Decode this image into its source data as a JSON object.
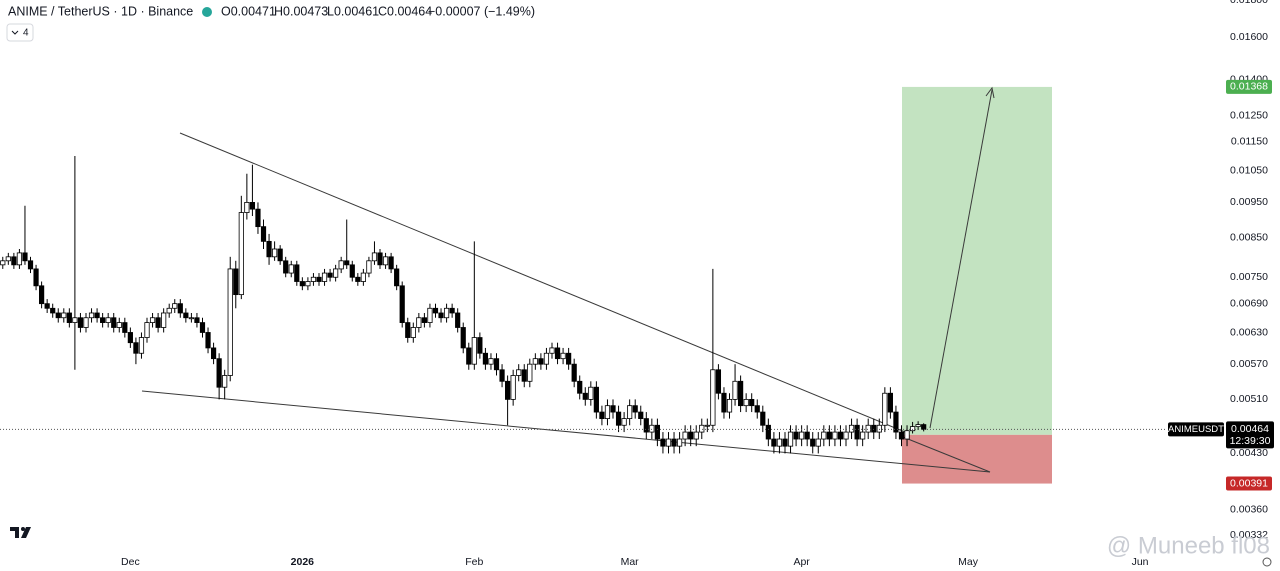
{
  "header": {
    "symbol": "ANIME / TetherUS · 1D · Binance",
    "ohlc": [
      "O0.00471",
      "H0.00473",
      "L0.00461",
      "C0.00464",
      "−0.00007 (−1.49%)"
    ],
    "indicators": "4"
  },
  "chart_data": {
    "type": "candlestick",
    "categories": [
      null,
      null,
      null,
      null,
      null,
      null,
      null,
      null,
      null,
      null,
      null,
      null,
      null,
      null,
      null,
      null,
      null,
      null,
      null,
      null,
      null,
      null,
      null,
      "Dec",
      null,
      null,
      null,
      null,
      null,
      null,
      null,
      null,
      null,
      null,
      null,
      null,
      null,
      null,
      null,
      null,
      null,
      null,
      null,
      null,
      null,
      null,
      null,
      null,
      null,
      null,
      null,
      null,
      null,
      null,
      "2026",
      null,
      null,
      null,
      null,
      null,
      null,
      null,
      null,
      null,
      null,
      null,
      null,
      null,
      null,
      null,
      null,
      null,
      null,
      null,
      null,
      null,
      null,
      null,
      null,
      null,
      null,
      null,
      null,
      null,
      null,
      "Feb",
      null,
      null,
      null,
      null,
      null,
      null,
      null,
      null,
      null,
      null,
      null,
      null,
      null,
      null,
      null,
      null,
      null,
      null,
      null,
      null,
      null,
      null,
      null,
      null,
      null,
      null,
      null,
      "Mar",
      null,
      null,
      null,
      null,
      null,
      null,
      null,
      null,
      null,
      null,
      null,
      null,
      null,
      null,
      null,
      null,
      null,
      null,
      null,
      null,
      null,
      null,
      null,
      null,
      null,
      null,
      null,
      null,
      null,
      null,
      "Apr",
      null,
      null,
      null,
      null,
      null,
      null,
      null,
      null,
      null,
      null,
      null,
      null,
      null,
      null,
      null,
      null,
      null,
      null,
      null,
      null,
      null,
      null,
      null,
      null,
      null,
      null,
      null,
      null,
      null,
      "May",
      null,
      null,
      null,
      null,
      null,
      null,
      null,
      null,
      null,
      null,
      null,
      null,
      null,
      null,
      null,
      null,
      null,
      null,
      null,
      null,
      null,
      null,
      null,
      null,
      null,
      null,
      null,
      null,
      null,
      null,
      "Jun",
      null,
      null,
      null,
      null
    ],
    "open": [
      0.0078,
      0.0079,
      0.008,
      0.0078,
      0.0081,
      0.0079,
      0.0077,
      0.0073,
      0.0069,
      0.0068,
      0.0067,
      0.0066,
      0.0067,
      0.0065,
      0.0066,
      0.0064,
      0.0066,
      0.0067,
      0.0066,
      0.0065,
      0.0066,
      0.0064,
      0.0065,
      0.0063,
      0.0061,
      0.0059,
      0.0062,
      0.0065,
      0.0066,
      0.0064,
      0.0067,
      0.0068,
      0.0069,
      0.0067,
      0.0066,
      0.0066,
      0.0065,
      0.0063,
      0.006,
      0.0058,
      0.0053,
      0.0055,
      0.0077,
      0.0071,
      0.0092,
      0.0095,
      0.0093,
      0.0088,
      0.0084,
      0.008,
      0.0082,
      0.0079,
      0.0076,
      0.0078,
      0.0074,
      0.0073,
      0.0074,
      0.0075,
      0.0074,
      0.0076,
      0.0075,
      0.0077,
      0.0079,
      0.0078,
      0.0075,
      0.0074,
      0.0076,
      0.0079,
      0.0081,
      0.0078,
      0.008,
      0.0077,
      0.0073,
      0.0065,
      0.0062,
      0.0064,
      0.0066,
      0.0065,
      0.0068,
      0.0067,
      0.0066,
      0.0068,
      0.0067,
      0.0064,
      0.006,
      0.0057,
      0.0062,
      0.0059,
      0.0057,
      0.0058,
      0.0056,
      0.0054,
      0.0051,
      0.0055,
      0.0056,
      0.0054,
      0.0057,
      0.0058,
      0.0057,
      0.0059,
      0.006,
      0.0058,
      0.0059,
      0.0057,
      0.0054,
      0.0052,
      0.0051,
      0.0053,
      0.0049,
      0.0048,
      0.005,
      0.0049,
      0.0047,
      0.0048,
      0.005,
      0.0049,
      0.0048,
      0.0046,
      0.0047,
      0.0045,
      0.0044,
      0.0045,
      0.0044,
      0.0045,
      0.0046,
      0.0045,
      0.0046,
      0.0047,
      0.0047,
      0.0056,
      0.0052,
      0.0049,
      0.0051,
      0.0054,
      0.005,
      0.0051,
      0.005,
      0.0049,
      0.0047,
      0.0045,
      0.0044,
      0.0045,
      0.0044,
      0.0046,
      0.0045,
      0.0046,
      0.0045,
      0.0044,
      0.0045,
      0.0046,
      0.0045,
      0.0046,
      0.0045,
      0.0046,
      0.0047,
      0.0045,
      0.0046,
      0.0047,
      0.0046,
      0.0047,
      0.0052,
      0.0049,
      0.0046,
      0.0045,
      0.00462,
      0.00468,
      0.00471,
      null,
      null,
      null,
      null,
      null,
      null,
      null,
      null,
      null,
      null,
      null,
      null,
      null,
      null,
      null,
      null,
      null,
      null,
      null,
      null,
      null,
      null,
      null,
      null,
      null,
      null,
      null,
      null,
      null,
      null,
      null,
      null,
      null,
      null,
      null,
      null,
      null,
      null,
      null,
      null,
      null,
      null,
      null
    ],
    "high": [
      0.008,
      0.0081,
      0.0081,
      0.0082,
      0.0094,
      0.008,
      0.0078,
      0.0074,
      0.007,
      0.0069,
      0.0068,
      0.0068,
      0.0068,
      0.011,
      0.0067,
      0.0067,
      0.0068,
      0.0068,
      0.0067,
      0.0067,
      0.0067,
      0.0066,
      0.0066,
      0.0064,
      0.0062,
      0.0063,
      0.0066,
      0.0067,
      0.0067,
      0.0068,
      0.0069,
      0.007,
      0.007,
      0.0068,
      0.0067,
      0.0067,
      0.0066,
      0.0064,
      0.0061,
      0.0059,
      0.0056,
      0.008,
      0.0079,
      0.0097,
      0.0104,
      0.0107,
      0.0095,
      0.009,
      0.0086,
      0.0084,
      0.0083,
      0.008,
      0.0079,
      0.0079,
      0.0075,
      0.0075,
      0.0076,
      0.0076,
      0.0077,
      0.0077,
      0.0078,
      0.008,
      0.009,
      0.0079,
      0.0076,
      0.0077,
      0.008,
      0.0084,
      0.0082,
      0.0081,
      0.0081,
      0.0078,
      0.0074,
      0.0066,
      0.0065,
      0.0067,
      0.0067,
      0.0069,
      0.0069,
      0.0068,
      0.0069,
      0.0069,
      0.0068,
      0.0065,
      0.0061,
      0.0084,
      0.0063,
      0.006,
      0.0059,
      0.0059,
      0.0057,
      0.0055,
      0.0056,
      0.0057,
      0.0057,
      0.0058,
      0.0059,
      0.0059,
      0.006,
      0.0061,
      0.0061,
      0.006,
      0.006,
      0.0058,
      0.0055,
      0.0053,
      0.0054,
      0.0054,
      0.005,
      0.0051,
      0.0051,
      0.005,
      0.0049,
      0.0051,
      0.0051,
      0.005,
      0.0049,
      0.0048,
      0.0048,
      0.0046,
      0.0046,
      0.0046,
      0.0046,
      0.0047,
      0.0047,
      0.0047,
      0.0048,
      0.0048,
      0.0077,
      0.0057,
      0.0053,
      0.0052,
      0.0057,
      0.0055,
      0.0052,
      0.0052,
      0.0051,
      0.005,
      0.0048,
      0.0046,
      0.0046,
      0.0046,
      0.0047,
      0.0047,
      0.0047,
      0.0047,
      0.0046,
      0.0046,
      0.0047,
      0.0047,
      0.0047,
      0.0047,
      0.0047,
      0.0048,
      0.0048,
      0.0047,
      0.0048,
      0.0048,
      0.0048,
      0.0053,
      0.0053,
      0.005,
      0.0047,
      0.0047,
      0.00475,
      0.00476,
      0.00473,
      null,
      null,
      null,
      null,
      null,
      null,
      null,
      null,
      null,
      null,
      null,
      null,
      null,
      null,
      null,
      null,
      null,
      null,
      null,
      null,
      null,
      null,
      null,
      null,
      null,
      null,
      null,
      null,
      null,
      null,
      null,
      null,
      null,
      null,
      null,
      null,
      null,
      null,
      null,
      null,
      null,
      null,
      null
    ],
    "low": [
      0.0077,
      0.0078,
      0.0077,
      0.0077,
      0.0078,
      0.0076,
      0.0072,
      0.0068,
      0.0067,
      0.0066,
      0.0065,
      0.0065,
      0.0064,
      0.0056,
      0.0063,
      0.0063,
      0.0065,
      0.0065,
      0.0064,
      0.0064,
      0.0063,
      0.0063,
      0.0062,
      0.006,
      0.0057,
      0.0058,
      0.0061,
      0.0064,
      0.0063,
      0.0063,
      0.0066,
      0.0067,
      0.0066,
      0.0065,
      0.0065,
      0.0064,
      0.0062,
      0.0059,
      0.0057,
      0.0051,
      0.0051,
      0.0054,
      0.0068,
      0.007,
      0.009,
      0.0091,
      0.0086,
      0.0082,
      0.0078,
      0.0079,
      0.0078,
      0.0075,
      0.0075,
      0.0073,
      0.0072,
      0.0072,
      0.0073,
      0.0073,
      0.0073,
      0.0074,
      0.0074,
      0.0076,
      0.0077,
      0.0074,
      0.0073,
      0.0073,
      0.0075,
      0.0078,
      0.0077,
      0.0077,
      0.0076,
      0.0072,
      0.0064,
      0.0061,
      0.0061,
      0.0063,
      0.0064,
      0.0064,
      0.0066,
      0.0065,
      0.0065,
      0.0066,
      0.0063,
      0.0059,
      0.0056,
      0.0056,
      0.0058,
      0.0056,
      0.0056,
      0.0055,
      0.0053,
      0.0047,
      0.005,
      0.0054,
      0.0053,
      0.0053,
      0.0056,
      0.0056,
      0.0056,
      0.0058,
      0.0057,
      0.0057,
      0.0056,
      0.0053,
      0.0051,
      0.005,
      0.005,
      0.0048,
      0.0047,
      0.0047,
      0.0048,
      0.0046,
      0.0046,
      0.0047,
      0.0048,
      0.0047,
      0.0045,
      0.0045,
      0.0044,
      0.0043,
      0.0043,
      0.0043,
      0.0043,
      0.0044,
      0.0044,
      0.0044,
      0.0045,
      0.0046,
      0.0046,
      0.0051,
      0.0048,
      0.0048,
      0.005,
      0.0049,
      0.0049,
      0.0049,
      0.0048,
      0.0046,
      0.0044,
      0.0043,
      0.0043,
      0.0043,
      0.0043,
      0.0044,
      0.0044,
      0.0044,
      0.0043,
      0.0043,
      0.0044,
      0.0044,
      0.0044,
      0.0044,
      0.0044,
      0.0045,
      0.0044,
      0.0044,
      0.0045,
      0.0045,
      0.0045,
      0.0046,
      0.0048,
      0.0045,
      0.0044,
      0.0044,
      0.00458,
      0.00463,
      0.00461,
      null,
      null,
      null,
      null,
      null,
      null,
      null,
      null,
      null,
      null,
      null,
      null,
      null,
      null,
      null,
      null,
      null,
      null,
      null,
      null,
      null,
      null,
      null,
      null,
      null,
      null,
      null,
      null,
      null,
      null,
      null,
      null,
      null,
      null,
      null,
      null,
      null,
      null,
      null,
      null,
      null,
      null,
      null
    ],
    "close": [
      0.0079,
      0.008,
      0.0078,
      0.0081,
      0.0079,
      0.0077,
      0.0073,
      0.0069,
      0.0068,
      0.0067,
      0.0066,
      0.0067,
      0.0065,
      0.0066,
      0.0064,
      0.0066,
      0.0067,
      0.0066,
      0.0065,
      0.0066,
      0.0064,
      0.0065,
      0.0063,
      0.0061,
      0.0059,
      0.0062,
      0.0065,
      0.0066,
      0.0064,
      0.0067,
      0.0068,
      0.0069,
      0.0067,
      0.0066,
      0.0066,
      0.0065,
      0.0063,
      0.006,
      0.0058,
      0.0053,
      0.0055,
      0.0077,
      0.0071,
      0.0092,
      0.0095,
      0.0093,
      0.0088,
      0.0084,
      0.008,
      0.0082,
      0.0079,
      0.0076,
      0.0078,
      0.0074,
      0.0073,
      0.0074,
      0.0075,
      0.0074,
      0.0076,
      0.0075,
      0.0077,
      0.0079,
      0.0078,
      0.0075,
      0.0074,
      0.0076,
      0.0079,
      0.0081,
      0.0078,
      0.008,
      0.0077,
      0.0073,
      0.0065,
      0.0062,
      0.0064,
      0.0066,
      0.0065,
      0.0068,
      0.0067,
      0.0066,
      0.0068,
      0.0067,
      0.0064,
      0.006,
      0.0057,
      0.0062,
      0.0059,
      0.0057,
      0.0058,
      0.0056,
      0.0054,
      0.0051,
      0.0055,
      0.0056,
      0.0054,
      0.0057,
      0.0058,
      0.0057,
      0.0059,
      0.006,
      0.0058,
      0.0059,
      0.0057,
      0.0054,
      0.0052,
      0.0051,
      0.0053,
      0.0049,
      0.0048,
      0.005,
      0.0049,
      0.0047,
      0.0048,
      0.005,
      0.0049,
      0.0048,
      0.0046,
      0.0047,
      0.0045,
      0.0044,
      0.0045,
      0.0044,
      0.0045,
      0.0046,
      0.0045,
      0.0046,
      0.0047,
      0.0047,
      0.0056,
      0.0052,
      0.0049,
      0.0051,
      0.0054,
      0.005,
      0.0051,
      0.005,
      0.0049,
      0.0047,
      0.0045,
      0.0044,
      0.0045,
      0.0044,
      0.0046,
      0.0045,
      0.0046,
      0.0045,
      0.0044,
      0.0045,
      0.0046,
      0.0045,
      0.0046,
      0.0045,
      0.0046,
      0.0047,
      0.0045,
      0.0046,
      0.0047,
      0.0046,
      0.0047,
      0.0052,
      0.0049,
      0.0046,
      0.0045,
      0.00462,
      0.00468,
      0.00471,
      0.00464,
      null,
      null,
      null,
      null,
      null,
      null,
      null,
      null,
      null,
      null,
      null,
      null,
      null,
      null,
      null,
      null,
      null,
      null,
      null,
      null,
      null,
      null,
      null,
      null,
      null,
      null,
      null,
      null,
      null,
      null,
      null,
      null,
      null,
      null,
      null,
      null,
      null,
      null,
      null,
      null,
      null,
      null,
      null
    ],
    "up_color": "#ffffff",
    "down_color": "#000000",
    "log_scale": true,
    "ylim": [
      0.00319,
      0.018
    ],
    "yticks": [
      {
        "value": 0.018,
        "label": "0.01800"
      },
      {
        "value": 0.016,
        "label": "0.01600"
      },
      {
        "value": 0.014,
        "label": "0.01400"
      },
      {
        "value": 0.0125,
        "label": "0.01250"
      },
      {
        "value": 0.0115,
        "label": "0.01150"
      },
      {
        "value": 0.0105,
        "label": "0.01050"
      },
      {
        "value": 0.0095,
        "label": "0.00950"
      },
      {
        "value": 0.0085,
        "label": "0.00850"
      },
      {
        "value": 0.0075,
        "label": "0.00750"
      },
      {
        "value": 0.0069,
        "label": "0.00690"
      },
      {
        "value": 0.0063,
        "label": "0.00630"
      },
      {
        "value": 0.0057,
        "label": "0.00570"
      },
      {
        "value": 0.0051,
        "label": "0.00510"
      },
      {
        "value": 0.0043,
        "label": "0.00430"
      },
      {
        "value": 0.0036,
        "label": "0.00360"
      },
      0.00332
    ],
    "ticker": "ANIMEUSDT",
    "countdown": "12:39:30",
    "position": {
      "target": 0.01368,
      "entry": 0.00456,
      "stop": 0.00391,
      "profit_color": "#c3e3c1",
      "loss_color": "#dd8d8d"
    }
  },
  "watermark": "@ Muneeb fl08"
}
